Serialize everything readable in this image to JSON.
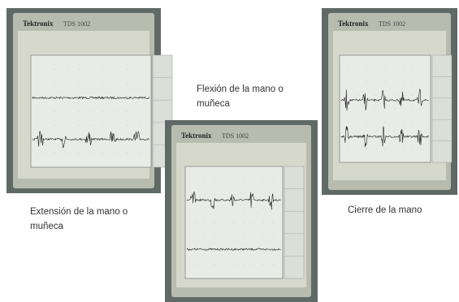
{
  "photos": [
    {
      "brand": "Tektronix",
      "model": "TDS 1002",
      "caption": "Extensión de la mano o muñeca"
    },
    {
      "brand": "Tektronix",
      "model": "TDS 1002",
      "caption": "Flexión de la mano o muñeca"
    },
    {
      "brand": "Tektronix",
      "model": "TDS 1002",
      "caption": "Cierre de la mano"
    }
  ]
}
